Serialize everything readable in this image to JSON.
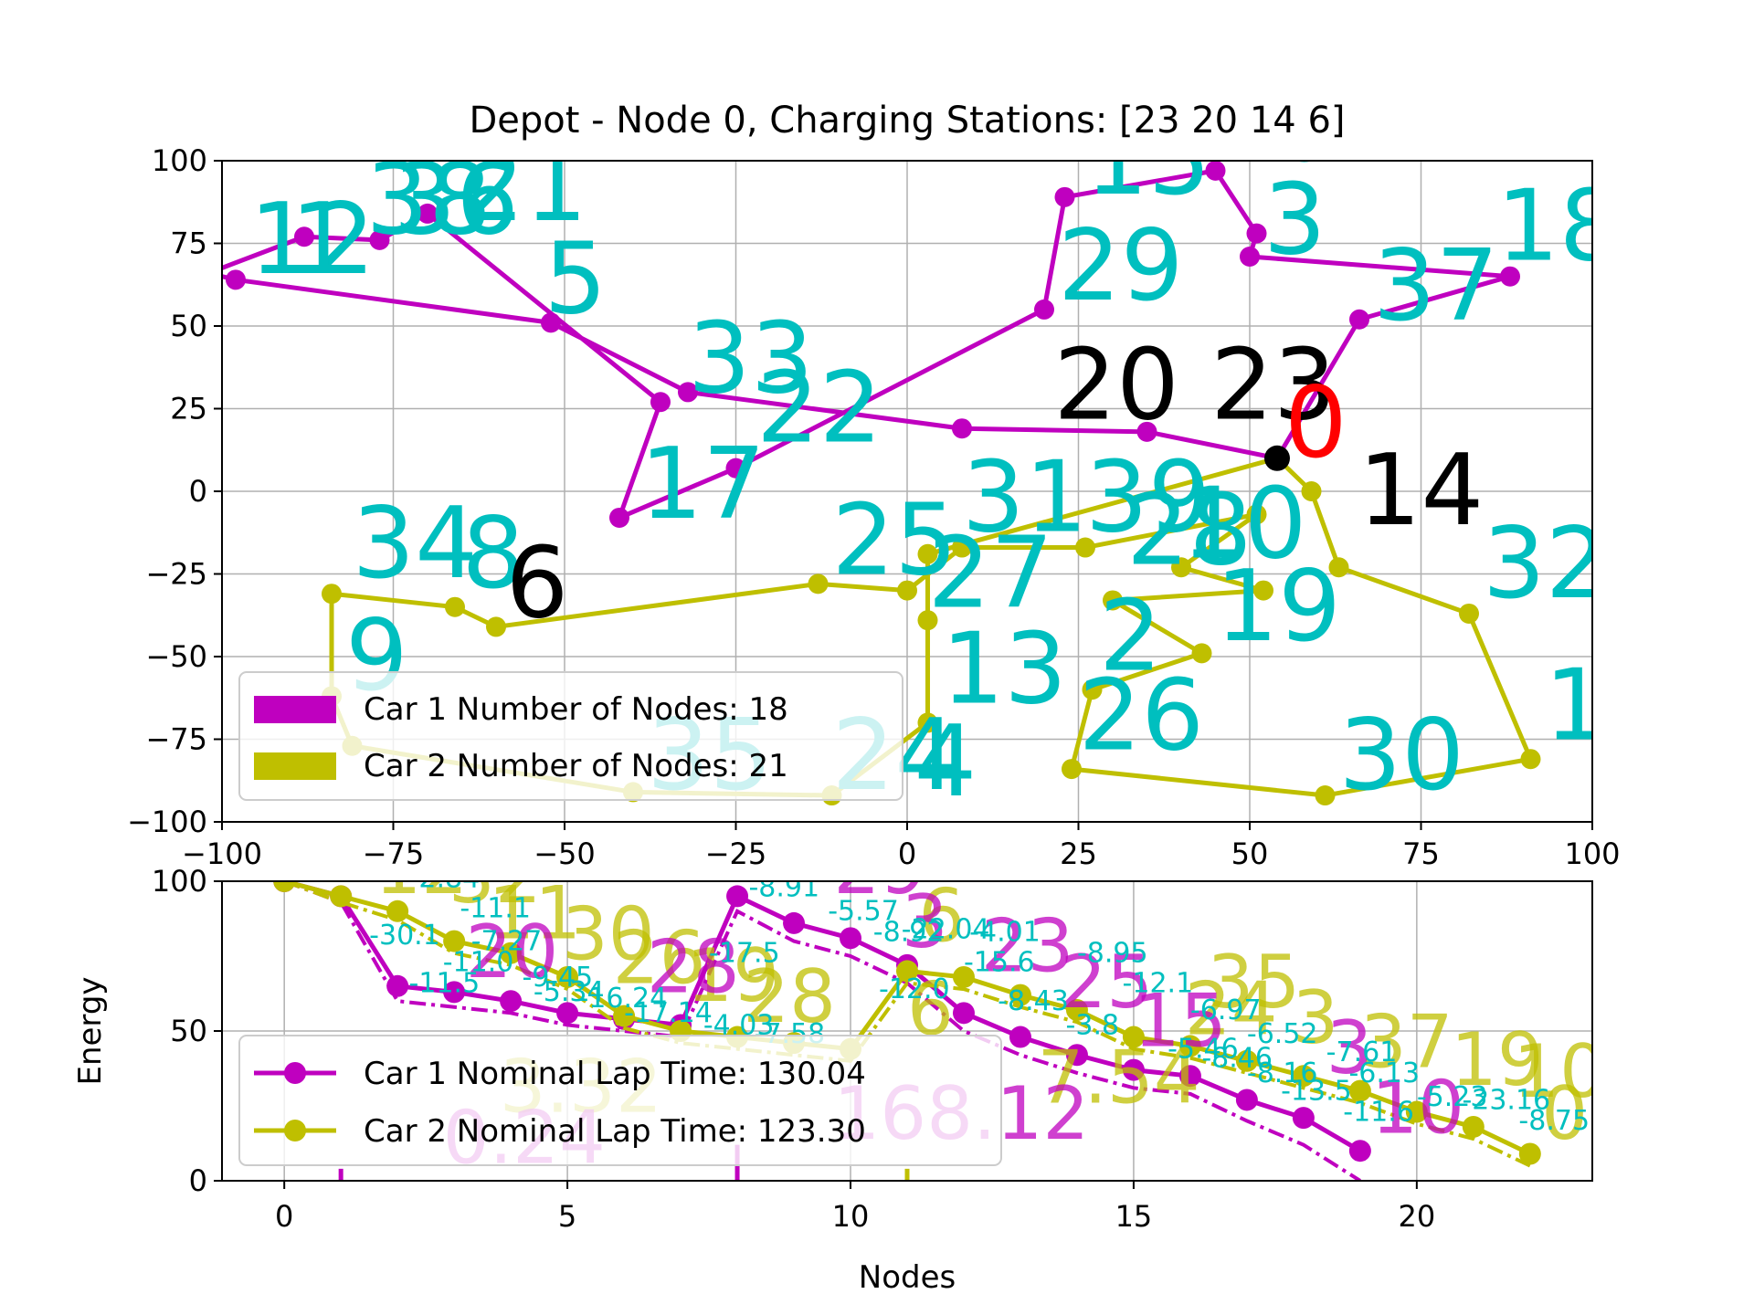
{
  "chart_data": [
    {
      "type": "scatter",
      "title": "Depot - Node 0, Charging Stations: [23 20 14  6]",
      "xlabel": "",
      "ylabel": "",
      "xlim": [
        -100,
        100
      ],
      "ylim": [
        -100,
        100
      ],
      "xticks": [
        -100,
        -75,
        -50,
        -25,
        0,
        25,
        50,
        75,
        100
      ],
      "yticks": [
        -100,
        -75,
        -50,
        -25,
        0,
        25,
        50,
        75,
        100
      ],
      "xtick_labels": [
        "−100",
        "−75",
        "−50",
        "−25",
        "0",
        "25",
        "50",
        "75",
        "100"
      ],
      "ytick_labels": [
        "−100",
        "−75",
        "−50",
        "−25",
        "0",
        "25",
        "50",
        "75",
        "100"
      ],
      "grid": true,
      "colors": {
        "car1": "#bf00bf",
        "car2": "#bfbf00",
        "node": "#00bfbf",
        "depot": "#ff0000",
        "station": "#000000"
      },
      "depot": {
        "label": "0",
        "x": 54,
        "y": 10
      },
      "stations": [
        {
          "label": "20 23",
          "x": 42,
          "y": 22
        },
        {
          "label": "14",
          "x": 75,
          "y": -10
        },
        {
          "label": "6",
          "x": -54,
          "y": -38
        }
      ],
      "node_labels": [
        {
          "label": "5",
          "x": -53,
          "y": 54
        },
        {
          "label": "12",
          "x": -96,
          "y": 66
        },
        {
          "label": "1",
          "x": -90,
          "y": 66
        },
        {
          "label": "38",
          "x": -79,
          "y": 78
        },
        {
          "label": "21",
          "x": -65,
          "y": 82
        },
        {
          "label": "36",
          "x": -75,
          "y": 78
        },
        {
          "label": "33",
          "x": -32,
          "y": 30
        },
        {
          "label": "22",
          "x": -22,
          "y": 15
        },
        {
          "label": "17",
          "x": -39,
          "y": -8
        },
        {
          "label": "15",
          "x": 26,
          "y": 90
        },
        {
          "label": "16",
          "x": 44,
          "y": 100
        },
        {
          "label": "3",
          "x": 52,
          "y": 72
        },
        {
          "label": "29",
          "x": 22,
          "y": 58
        },
        {
          "label": "37",
          "x": 68,
          "y": 52
        },
        {
          "label": "18",
          "x": 86,
          "y": 70
        },
        {
          "label": "31",
          "x": 8,
          "y": -12
        },
        {
          "label": "39",
          "x": 26,
          "y": -12
        },
        {
          "label": "10",
          "x": 40,
          "y": -20
        },
        {
          "label": "28",
          "x": 32,
          "y": -22
        },
        {
          "label": "25",
          "x": -11,
          "y": -25
        },
        {
          "label": "27",
          "x": 3,
          "y": -35
        },
        {
          "label": "19",
          "x": 45,
          "y": -45
        },
        {
          "label": "32",
          "x": 84,
          "y": -32
        },
        {
          "label": "13",
          "x": 5,
          "y": -64
        },
        {
          "label": "2",
          "x": 28,
          "y": -54
        },
        {
          "label": "26",
          "x": 25,
          "y": -78
        },
        {
          "label": "30",
          "x": 63,
          "y": -90
        },
        {
          "label": "11",
          "x": 93,
          "y": -75
        },
        {
          "label": "34",
          "x": -81,
          "y": -26
        },
        {
          "label": "8",
          "x": -65,
          "y": -29
        },
        {
          "label": "9",
          "x": -82,
          "y": -60
        },
        {
          "label": "35",
          "x": -38,
          "y": -90
        },
        {
          "label": "24",
          "x": -11,
          "y": -90
        },
        {
          "label": "4",
          "x": 1,
          "y": -92
        }
      ],
      "legend": [
        "Car 1 Number of Nodes: 18",
        "Car 2 Number of Nodes: 21"
      ],
      "series": [
        {
          "name": "Car 1",
          "points": [
            [
              54,
              10
            ],
            [
              35,
              18
            ],
            [
              8,
              19
            ],
            [
              -32,
              30
            ],
            [
              -52,
              51
            ],
            [
              -98,
              64
            ],
            [
              -102,
              66
            ],
            [
              -88,
              77
            ],
            [
              -77,
              76
            ],
            [
              -70,
              84
            ],
            [
              -36,
              27
            ],
            [
              -42,
              -8
            ],
            [
              -25,
              7
            ],
            [
              20,
              55
            ],
            [
              23,
              89
            ],
            [
              45,
              97
            ],
            [
              51,
              78
            ],
            [
              50,
              71
            ],
            [
              88,
              65
            ],
            [
              66,
              52
            ],
            [
              54,
              10
            ]
          ]
        },
        {
          "name": "Car 2",
          "points": [
            [
              54,
              10
            ],
            [
              59,
              0
            ],
            [
              63,
              -23
            ],
            [
              82,
              -37
            ],
            [
              91,
              -81
            ],
            [
              61,
              -92
            ],
            [
              24,
              -84
            ],
            [
              27,
              -60
            ],
            [
              43,
              -49
            ],
            [
              30,
              -33
            ],
            [
              52,
              -30
            ],
            [
              40,
              -23
            ],
            [
              51,
              -7
            ],
            [
              26,
              -17
            ],
            [
              8,
              -17
            ],
            [
              0,
              -30
            ],
            [
              -13,
              -28
            ],
            [
              -60,
              -41
            ],
            [
              -66,
              -35
            ],
            [
              -84,
              -31
            ],
            [
              -84,
              -62
            ],
            [
              -81,
              -77
            ],
            [
              -40,
              -91
            ],
            [
              -11,
              -92
            ],
            [
              3,
              -70
            ],
            [
              3,
              -39
            ],
            [
              3,
              -19
            ],
            [
              54,
              10
            ]
          ]
        }
      ]
    },
    {
      "type": "line",
      "title": "",
      "xlabel": "Nodes",
      "ylabel": "Energy",
      "xlim": [
        -1.1,
        23.1
      ],
      "ylim": [
        0,
        100
      ],
      "xticks": [
        0,
        5,
        10,
        15,
        20
      ],
      "yticks": [
        0,
        50,
        100
      ],
      "xtick_labels": [
        "0",
        "5",
        "10",
        "15",
        "20"
      ],
      "ytick_labels": [
        "0",
        "50",
        "100"
      ],
      "grid": true,
      "legend": [
        "Car 1 Nominal Lap Time: 130.04",
        "Car 2 Nominal Lap Time: 123.30"
      ],
      "series": [
        {
          "name": "Car 1 Nominal Lap Time: 130.04",
          "x": [
            0,
            1,
            2,
            3,
            4,
            5,
            6,
            7,
            8,
            9,
            10,
            11,
            12,
            13,
            14,
            15,
            16,
            17,
            18,
            19
          ],
          "values": [
            100,
            95,
            65,
            63,
            60,
            56,
            54,
            52,
            95,
            86,
            81,
            72,
            56,
            48,
            42,
            37,
            35,
            27,
            21,
            10
          ],
          "lower": [
            100,
            93,
            60,
            58,
            56,
            52,
            50,
            48,
            90,
            80,
            75,
            66,
            50,
            42,
            36,
            31,
            29,
            20,
            12,
            0
          ]
        },
        {
          "name": "Car 2 Nominal Lap Time: 123.30",
          "x": [
            0,
            1,
            2,
            3,
            4,
            5,
            6,
            7,
            8,
            9,
            10,
            11,
            12,
            13,
            14,
            15,
            16,
            17,
            18,
            19,
            20,
            21,
            22
          ],
          "values": [
            100,
            95,
            90,
            80,
            76,
            68,
            55,
            50,
            48,
            46,
            44,
            70,
            68,
            62,
            57,
            48,
            45,
            40,
            35,
            30,
            23,
            18,
            9
          ],
          "lower": [
            100,
            93,
            87,
            76,
            72,
            64,
            51,
            46,
            44,
            42,
            40,
            66,
            64,
            58,
            53,
            44,
            41,
            36,
            31,
            26,
            19,
            14,
            5
          ]
        }
      ],
      "cost_labels": [
        {
          "text": "-8.27",
          "x": 1.5,
          "y": 100
        },
        {
          "text": "-2.84",
          "x": 2.2,
          "y": 98
        },
        {
          "text": "-11.1",
          "x": 3.1,
          "y": 88
        },
        {
          "text": "-30.1",
          "x": 1.5,
          "y": 79
        },
        {
          "text": "-7.27",
          "x": 3.3,
          "y": 77
        },
        {
          "text": "-11.0",
          "x": 2.8,
          "y": 70
        },
        {
          "text": "-9.45",
          "x": 4.2,
          "y": 65
        },
        {
          "text": "-11.5",
          "x": 2.2,
          "y": 63
        },
        {
          "text": "-5.34",
          "x": 4.4,
          "y": 60
        },
        {
          "text": "-16.24",
          "x": 5.2,
          "y": 58
        },
        {
          "text": "-17.14",
          "x": 6.0,
          "y": 53
        },
        {
          "text": "-4.03",
          "x": 7.4,
          "y": 49
        },
        {
          "text": "-7.58",
          "x": 8.3,
          "y": 46
        },
        {
          "text": "-17.5",
          "x": 7.5,
          "y": 73
        },
        {
          "text": "-8.91",
          "x": 8.2,
          "y": 95
        },
        {
          "text": "-5.57",
          "x": 9.6,
          "y": 87
        },
        {
          "text": "-8.92",
          "x": 10.4,
          "y": 80
        },
        {
          "text": "-22.04",
          "x": 10.9,
          "y": 81
        },
        {
          "text": "-4.01",
          "x": 12.1,
          "y": 80
        },
        {
          "text": "-8.95",
          "x": 14.0,
          "y": 73
        },
        {
          "text": "-15.6",
          "x": 12.0,
          "y": 70
        },
        {
          "text": "-12.1",
          "x": 14.8,
          "y": 63
        },
        {
          "text": "-12.0",
          "x": 10.5,
          "y": 61
        },
        {
          "text": "-8.43",
          "x": 12.6,
          "y": 57
        },
        {
          "text": "-3.8",
          "x": 13.8,
          "y": 49
        },
        {
          "text": "-6.97",
          "x": 16.0,
          "y": 54
        },
        {
          "text": "-6.52",
          "x": 17.0,
          "y": 46
        },
        {
          "text": "-5.46",
          "x": 15.6,
          "y": 41
        },
        {
          "text": "-8.46",
          "x": 16.2,
          "y": 38
        },
        {
          "text": "-8.16",
          "x": 17.0,
          "y": 33
        },
        {
          "text": "-7.61",
          "x": 18.4,
          "y": 40
        },
        {
          "text": "-6.13",
          "x": 18.8,
          "y": 33
        },
        {
          "text": "-13.5",
          "x": 17.6,
          "y": 27
        },
        {
          "text": "-11.6",
          "x": 18.7,
          "y": 20
        },
        {
          "text": "-5.23",
          "x": 20.0,
          "y": 25
        },
        {
          "text": "-23.16",
          "x": 20.8,
          "y": 24
        },
        {
          "text": "-8.75",
          "x": 21.8,
          "y": 17
        }
      ],
      "node_labels": [
        {
          "text": "0",
          "x": 0.4,
          "y": 101,
          "series": "Car 2"
        },
        {
          "text": "12",
          "x": 1.6,
          "y": 96,
          "series": "Car 2"
        },
        {
          "text": "32",
          "x": 2.9,
          "y": 93,
          "series": "Car 2"
        },
        {
          "text": "11",
          "x": 3.6,
          "y": 81,
          "series": "Car 2"
        },
        {
          "text": "30",
          "x": 4.9,
          "y": 74,
          "series": "Car 2"
        },
        {
          "text": "26",
          "x": 5.8,
          "y": 66,
          "series": "Car 2"
        },
        {
          "text": "19",
          "x": 7.1,
          "y": 60,
          "series": "Car 2"
        },
        {
          "text": "28",
          "x": 8.1,
          "y": 53,
          "series": "Car 2"
        },
        {
          "text": "7.54",
          "x": 13.3,
          "y": 26,
          "series": "Car 2"
        },
        {
          "text": "3.32",
          "x": 3.8,
          "y": 23,
          "series": "Car 2"
        },
        {
          "text": "6",
          "x": 11.2,
          "y": 80,
          "series": "Car 2"
        },
        {
          "text": "6",
          "x": 11.0,
          "y": 49,
          "series": "Car 2"
        },
        {
          "text": "35",
          "x": 16.3,
          "y": 58,
          "series": "Car 2"
        },
        {
          "text": "24",
          "x": 15.9,
          "y": 49,
          "series": "Car 2"
        },
        {
          "text": "3",
          "x": 17.8,
          "y": 46,
          "series": "Car 2"
        },
        {
          "text": "37",
          "x": 19.0,
          "y": 38,
          "series": "Car 2"
        },
        {
          "text": "19",
          "x": 20.6,
          "y": 32,
          "series": "Car 2"
        },
        {
          "text": "10",
          "x": 21.7,
          "y": 28,
          "series": "Car 2"
        },
        {
          "text": "0",
          "x": 22.2,
          "y": 14,
          "series": "Car 2"
        },
        {
          "text": "0.24",
          "x": 2.8,
          "y": 6,
          "series": "Car 1"
        },
        {
          "text": "168.12",
          "x": 9.7,
          "y": 14,
          "series": "Car 1"
        },
        {
          "text": "29",
          "x": 9.7,
          "y": 96,
          "series": "Car 1"
        },
        {
          "text": "3",
          "x": 10.9,
          "y": 78,
          "series": "Car 1"
        },
        {
          "text": "23",
          "x": 12.3,
          "y": 70,
          "series": "Car 1"
        },
        {
          "text": "28",
          "x": 6.4,
          "y": 63,
          "series": "Car 1"
        },
        {
          "text": "20",
          "x": 8.9,
          "y": 102,
          "series": "Car 1"
        },
        {
          "text": "20",
          "x": 3.2,
          "y": 68,
          "series": "Car 1"
        },
        {
          "text": "25",
          "x": 13.7,
          "y": 58,
          "series": "Car 1"
        },
        {
          "text": "15",
          "x": 15.0,
          "y": 45,
          "series": "Car 1"
        },
        {
          "text": "3",
          "x": 18.4,
          "y": 36,
          "series": "Car 1"
        },
        {
          "text": "10",
          "x": 19.2,
          "y": 16,
          "series": "Car 1"
        }
      ]
    }
  ]
}
